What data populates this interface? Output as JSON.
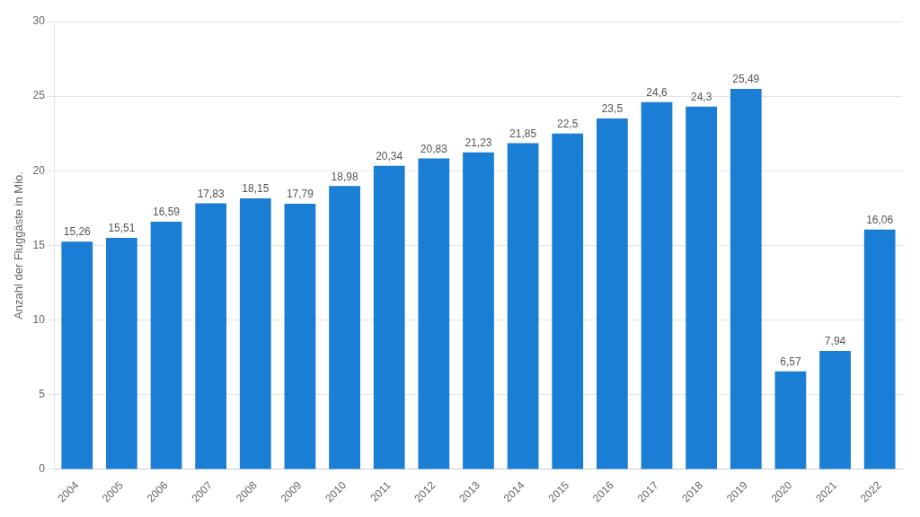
{
  "chart_data": {
    "type": "bar",
    "y_label": "Anzahl der Fluggäste in Mio.",
    "categories": [
      "2004",
      "2005",
      "2006",
      "2007",
      "2008",
      "2009",
      "2010",
      "2011",
      "2012",
      "2013",
      "2014",
      "2015",
      "2016",
      "2017",
      "2018",
      "2019",
      "2020",
      "2021",
      "2022"
    ],
    "values": [
      15.26,
      15.51,
      16.59,
      17.83,
      18.15,
      17.79,
      18.98,
      20.34,
      20.83,
      21.23,
      21.85,
      22.5,
      23.5,
      24.6,
      24.3,
      25.49,
      6.57,
      7.94,
      16.06
    ],
    "value_labels": [
      "15,26",
      "15,51",
      "16,59",
      "17,83",
      "18,15",
      "17,79",
      "18,98",
      "20,34",
      "20,83",
      "21,23",
      "21,85",
      "22,5",
      "23,5",
      "24,6",
      "24,3",
      "25,49",
      "6,57",
      "7,94",
      "16,06"
    ],
    "data_labels": true,
    "color": "#1a7fd4",
    "ylim": [
      0,
      30
    ],
    "yticks": [
      0,
      5,
      10,
      15,
      20,
      25,
      30
    ],
    "grid": true
  }
}
